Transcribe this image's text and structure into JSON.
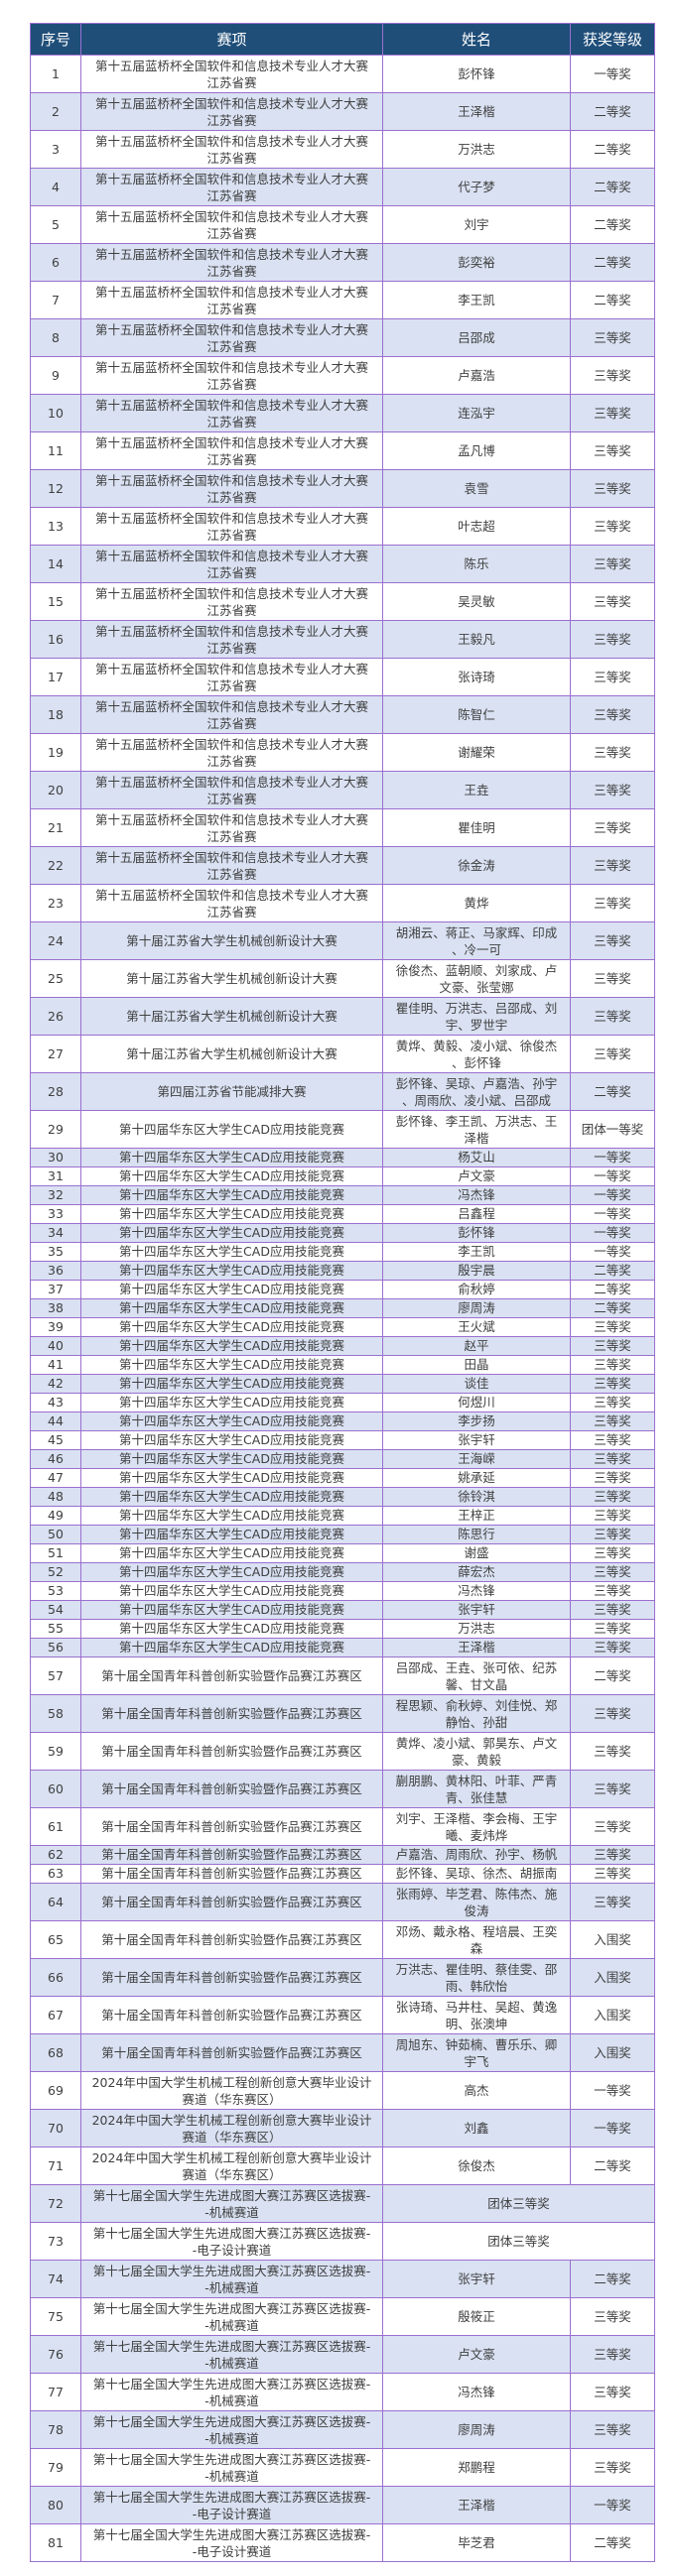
{
  "header": {
    "no": "序号",
    "event": "赛项",
    "name": "姓名",
    "award": "获奖等级"
  },
  "colors": {
    "header_bg": "#1f4e79",
    "row_shade": "#d9e1f2",
    "border": "#9b6fd0",
    "text": "#404040"
  },
  "rows": [
    {
      "no": "1",
      "event": "第十五届蓝桥杯全国软件和信息技术专业人才大赛\n江苏省赛",
      "name": "彭怀锋",
      "award": "一等奖"
    },
    {
      "no": "2",
      "event": "第十五届蓝桥杯全国软件和信息技术专业人才大赛\n江苏省赛",
      "name": "王泽楷",
      "award": "二等奖"
    },
    {
      "no": "3",
      "event": "第十五届蓝桥杯全国软件和信息技术专业人才大赛\n江苏省赛",
      "name": "万洪志",
      "award": "二等奖"
    },
    {
      "no": "4",
      "event": "第十五届蓝桥杯全国软件和信息技术专业人才大赛\n江苏省赛",
      "name": "代子梦",
      "award": "二等奖"
    },
    {
      "no": "5",
      "event": "第十五届蓝桥杯全国软件和信息技术专业人才大赛\n江苏省赛",
      "name": "刘宇",
      "award": "二等奖"
    },
    {
      "no": "6",
      "event": "第十五届蓝桥杯全国软件和信息技术专业人才大赛\n江苏省赛",
      "name": "彭奕裕",
      "award": "二等奖"
    },
    {
      "no": "7",
      "event": "第十五届蓝桥杯全国软件和信息技术专业人才大赛\n江苏省赛",
      "name": "李王凯",
      "award": "二等奖"
    },
    {
      "no": "8",
      "event": "第十五届蓝桥杯全国软件和信息技术专业人才大赛\n江苏省赛",
      "name": "吕邵成",
      "award": "三等奖"
    },
    {
      "no": "9",
      "event": "第十五届蓝桥杯全国软件和信息技术专业人才大赛\n江苏省赛",
      "name": "卢嘉浩",
      "award": "三等奖"
    },
    {
      "no": "10",
      "event": "第十五届蓝桥杯全国软件和信息技术专业人才大赛\n江苏省赛",
      "name": "连泓宇",
      "award": "三等奖"
    },
    {
      "no": "11",
      "event": "第十五届蓝桥杯全国软件和信息技术专业人才大赛\n江苏省赛",
      "name": "孟凡博",
      "award": "三等奖"
    },
    {
      "no": "12",
      "event": "第十五届蓝桥杯全国软件和信息技术专业人才大赛\n江苏省赛",
      "name": "袁雪",
      "award": "三等奖"
    },
    {
      "no": "13",
      "event": "第十五届蓝桥杯全国软件和信息技术专业人才大赛\n江苏省赛",
      "name": "叶志超",
      "award": "三等奖"
    },
    {
      "no": "14",
      "event": "第十五届蓝桥杯全国软件和信息技术专业人才大赛\n江苏省赛",
      "name": "陈乐",
      "award": "三等奖"
    },
    {
      "no": "15",
      "event": "第十五届蓝桥杯全国软件和信息技术专业人才大赛\n江苏省赛",
      "name": "吴灵敏",
      "award": "三等奖"
    },
    {
      "no": "16",
      "event": "第十五届蓝桥杯全国软件和信息技术专业人才大赛\n江苏省赛",
      "name": "王毅凡",
      "award": "三等奖"
    },
    {
      "no": "17",
      "event": "第十五届蓝桥杯全国软件和信息技术专业人才大赛\n江苏省赛",
      "name": "张诗琦",
      "award": "三等奖"
    },
    {
      "no": "18",
      "event": "第十五届蓝桥杯全国软件和信息技术专业人才大赛\n江苏省赛",
      "name": "陈智仁",
      "award": "三等奖"
    },
    {
      "no": "19",
      "event": "第十五届蓝桥杯全国软件和信息技术专业人才大赛\n江苏省赛",
      "name": "谢耀荣",
      "award": "三等奖"
    },
    {
      "no": "20",
      "event": "第十五届蓝桥杯全国软件和信息技术专业人才大赛\n江苏省赛",
      "name": "王垚",
      "award": "三等奖"
    },
    {
      "no": "21",
      "event": "第十五届蓝桥杯全国软件和信息技术专业人才大赛\n江苏省赛",
      "name": "瞿佳明",
      "award": "三等奖"
    },
    {
      "no": "22",
      "event": "第十五届蓝桥杯全国软件和信息技术专业人才大赛\n江苏省赛",
      "name": "徐金涛",
      "award": "三等奖"
    },
    {
      "no": "23",
      "event": "第十五届蓝桥杯全国软件和信息技术专业人才大赛\n江苏省赛",
      "name": "黄烨",
      "award": "三等奖"
    },
    {
      "no": "24",
      "event": "第十届江苏省大学生机械创新设计大赛",
      "name": "胡湘云、蒋正、马家辉、印成\n、冷一可",
      "award": "三等奖"
    },
    {
      "no": "25",
      "event": "第十届江苏省大学生机械创新设计大赛",
      "name": "徐俊杰、蓝朝顺、刘家成、卢\n文豪、张莹娜",
      "award": "三等奖"
    },
    {
      "no": "26",
      "event": "第十届江苏省大学生机械创新设计大赛",
      "name": "瞿佳明、万洪志、吕邵成、刘\n宇、罗世宇",
      "award": "三等奖"
    },
    {
      "no": "27",
      "event": "第十届江苏省大学生机械创新设计大赛",
      "name": "黄烨、黄毅、凌小斌、徐俊杰\n、彭怀锋",
      "award": "三等奖"
    },
    {
      "no": "28",
      "event": "第四届江苏省节能减排大赛",
      "name": "彭怀锋、吴琼、卢嘉浩、孙宇\n、周雨欣、凌小斌、吕邵成",
      "award": "二等奖"
    },
    {
      "no": "29",
      "event": "第十四届华东区大学生CAD应用技能竞赛",
      "name": "彭怀锋、李王凯、万洪志、王\n泽楷",
      "award": "团体一等奖"
    },
    {
      "no": "30",
      "event": "第十四届华东区大学生CAD应用技能竞赛",
      "name": "杨艾山",
      "award": "一等奖"
    },
    {
      "no": "31",
      "event": "第十四届华东区大学生CAD应用技能竞赛",
      "name": "卢文豪",
      "award": "一等奖"
    },
    {
      "no": "32",
      "event": "第十四届华东区大学生CAD应用技能竞赛",
      "name": "冯杰锋",
      "award": "一等奖"
    },
    {
      "no": "33",
      "event": "第十四届华东区大学生CAD应用技能竞赛",
      "name": "吕鑫程",
      "award": "一等奖"
    },
    {
      "no": "34",
      "event": "第十四届华东区大学生CAD应用技能竞赛",
      "name": "彭怀锋",
      "award": "一等奖"
    },
    {
      "no": "35",
      "event": "第十四届华东区大学生CAD应用技能竞赛",
      "name": "李王凯",
      "award": "一等奖"
    },
    {
      "no": "36",
      "event": "第十四届华东区大学生CAD应用技能竞赛",
      "name": "殷宇晨",
      "award": "二等奖"
    },
    {
      "no": "37",
      "event": "第十四届华东区大学生CAD应用技能竞赛",
      "name": "俞秋婷",
      "award": "二等奖"
    },
    {
      "no": "38",
      "event": "第十四届华东区大学生CAD应用技能竞赛",
      "name": "廖周涛",
      "award": "二等奖"
    },
    {
      "no": "39",
      "event": "第十四届华东区大学生CAD应用技能竞赛",
      "name": "王火斌",
      "award": "三等奖"
    },
    {
      "no": "40",
      "event": "第十四届华东区大学生CAD应用技能竞赛",
      "name": "赵平",
      "award": "三等奖"
    },
    {
      "no": "41",
      "event": "第十四届华东区大学生CAD应用技能竞赛",
      "name": "田晶",
      "award": "三等奖"
    },
    {
      "no": "42",
      "event": "第十四届华东区大学生CAD应用技能竞赛",
      "name": "谈佳",
      "award": "三等奖"
    },
    {
      "no": "43",
      "event": "第十四届华东区大学生CAD应用技能竞赛",
      "name": "何煜川",
      "award": "三等奖"
    },
    {
      "no": "44",
      "event": "第十四届华东区大学生CAD应用技能竞赛",
      "name": "李步扬",
      "award": "三等奖"
    },
    {
      "no": "45",
      "event": "第十四届华东区大学生CAD应用技能竞赛",
      "name": "张宇轩",
      "award": "三等奖"
    },
    {
      "no": "46",
      "event": "第十四届华东区大学生CAD应用技能竞赛",
      "name": "王海嵘",
      "award": "三等奖"
    },
    {
      "no": "47",
      "event": "第十四届华东区大学生CAD应用技能竞赛",
      "name": "姚承延",
      "award": "三等奖"
    },
    {
      "no": "48",
      "event": "第十四届华东区大学生CAD应用技能竞赛",
      "name": "徐铃淇",
      "award": "三等奖"
    },
    {
      "no": "49",
      "event": "第十四届华东区大学生CAD应用技能竞赛",
      "name": "王梓正",
      "award": "三等奖"
    },
    {
      "no": "50",
      "event": "第十四届华东区大学生CAD应用技能竞赛",
      "name": "陈思行",
      "award": "三等奖"
    },
    {
      "no": "51",
      "event": "第十四届华东区大学生CAD应用技能竞赛",
      "name": "谢盛",
      "award": "三等奖"
    },
    {
      "no": "52",
      "event": "第十四届华东区大学生CAD应用技能竞赛",
      "name": "薛宏杰",
      "award": "三等奖"
    },
    {
      "no": "53",
      "event": "第十四届华东区大学生CAD应用技能竞赛",
      "name": "冯杰锋",
      "award": "三等奖"
    },
    {
      "no": "54",
      "event": "第十四届华东区大学生CAD应用技能竞赛",
      "name": "张宇轩",
      "award": "三等奖"
    },
    {
      "no": "55",
      "event": "第十四届华东区大学生CAD应用技能竞赛",
      "name": "万洪志",
      "award": "三等奖"
    },
    {
      "no": "56",
      "event": "第十四届华东区大学生CAD应用技能竞赛",
      "name": "王泽楷",
      "award": "三等奖"
    },
    {
      "no": "57",
      "event": "第十届全国青年科普创新实验暨作品赛江苏赛区",
      "name": "吕邵成、王垚、张可依、纪苏\n馨、甘文晶",
      "award": "二等奖"
    },
    {
      "no": "58",
      "event": "第十届全国青年科普创新实验暨作品赛江苏赛区",
      "name": "程思颖、俞秋婷、刘佳悦、郑\n静怡、孙甜",
      "award": "三等奖"
    },
    {
      "no": "59",
      "event": "第十届全国青年科普创新实验暨作品赛江苏赛区",
      "name": "黄烨、凌小斌、郭昊东、卢文\n豪、黄毅",
      "award": "三等奖"
    },
    {
      "no": "60",
      "event": "第十届全国青年科普创新实验暨作品赛江苏赛区",
      "name": "蒯朋鹏、黄林阳、叶菲、严青\n青、张佳慧",
      "award": "三等奖"
    },
    {
      "no": "61",
      "event": "第十届全国青年科普创新实验暨作品赛江苏赛区",
      "name": "刘宇、王泽楷、李会梅、王宇\n曦、麦炜烨",
      "award": "三等奖"
    },
    {
      "no": "62",
      "event": "第十届全国青年科普创新实验暨作品赛江苏赛区",
      "name": "卢嘉浩、周雨欣、孙宇、杨帆",
      "award": "三等奖"
    },
    {
      "no": "63",
      "event": "第十届全国青年科普创新实验暨作品赛江苏赛区",
      "name": "彭怀锋、吴琼、徐杰、胡振南",
      "award": "三等奖"
    },
    {
      "no": "64",
      "event": "第十届全国青年科普创新实验暨作品赛江苏赛区",
      "name": "张雨婷、毕芝君、陈伟杰、施\n俊涛",
      "award": "三等奖"
    },
    {
      "no": "65",
      "event": "第十届全国青年科普创新实验暨作品赛江苏赛区",
      "name": "邓炀、戴永格、程培晨、王奕\n森",
      "award": "入围奖"
    },
    {
      "no": "66",
      "event": "第十届全国青年科普创新实验暨作品赛江苏赛区",
      "name": "万洪志、瞿佳明、蔡佳雯、邵\n雨、韩欣怡",
      "award": "入围奖"
    },
    {
      "no": "67",
      "event": "第十届全国青年科普创新实验暨作品赛江苏赛区",
      "name": "张诗琦、马井柱、吴超、黄逸\n明、张澳坤",
      "award": "入围奖"
    },
    {
      "no": "68",
      "event": "第十届全国青年科普创新实验暨作品赛江苏赛区",
      "name": "周旭东、钟茹楠、曹乐乐、卿\n宇飞",
      "award": "入围奖"
    },
    {
      "no": "69",
      "event": "2024年中国大学生机械工程创新创意大赛毕业设计\n赛道（华东赛区）",
      "name": "高杰",
      "award": "一等奖"
    },
    {
      "no": "70",
      "event": "2024年中国大学生机械工程创新创意大赛毕业设计\n赛道（华东赛区）",
      "name": "刘鑫",
      "award": "一等奖"
    },
    {
      "no": "71",
      "event": "2024年中国大学生机械工程创新创意大赛毕业设计\n赛道（华东赛区）",
      "name": "徐俊杰",
      "award": "二等奖"
    },
    {
      "no": "72",
      "event": "第十七届全国大学生先进成图大赛江苏赛区选拔赛-\n-机械赛道",
      "team_award": "团体三等奖"
    },
    {
      "no": "73",
      "event": "第十七届全国大学生先进成图大赛江苏赛区选拔赛-\n-电子设计赛道",
      "team_award": "团体三等奖"
    },
    {
      "no": "74",
      "event": "第十七届全国大学生先进成图大赛江苏赛区选拔赛-\n-机械赛道",
      "name": "张宇轩",
      "award": "二等奖"
    },
    {
      "no": "75",
      "event": "第十七届全国大学生先进成图大赛江苏赛区选拔赛-\n-机械赛道",
      "name": "殷筱正",
      "award": "三等奖"
    },
    {
      "no": "76",
      "event": "第十七届全国大学生先进成图大赛江苏赛区选拔赛-\n-机械赛道",
      "name": "卢文豪",
      "award": "三等奖"
    },
    {
      "no": "77",
      "event": "第十七届全国大学生先进成图大赛江苏赛区选拔赛-\n-机械赛道",
      "name": "冯杰锋",
      "award": "三等奖"
    },
    {
      "no": "78",
      "event": "第十七届全国大学生先进成图大赛江苏赛区选拔赛-\n-机械赛道",
      "name": "廖周涛",
      "award": "三等奖"
    },
    {
      "no": "79",
      "event": "第十七届全国大学生先进成图大赛江苏赛区选拔赛-\n-机械赛道",
      "name": "郑鹏程",
      "award": "三等奖"
    },
    {
      "no": "80",
      "event": "第十七届全国大学生先进成图大赛江苏赛区选拔赛-\n-电子设计赛道",
      "name": "王泽楷",
      "award": "一等奖"
    },
    {
      "no": "81",
      "event": "第十七届全国大学生先进成图大赛江苏赛区选拔赛-\n-电子设计赛道",
      "name": "毕芝君",
      "award": "二等奖"
    }
  ]
}
